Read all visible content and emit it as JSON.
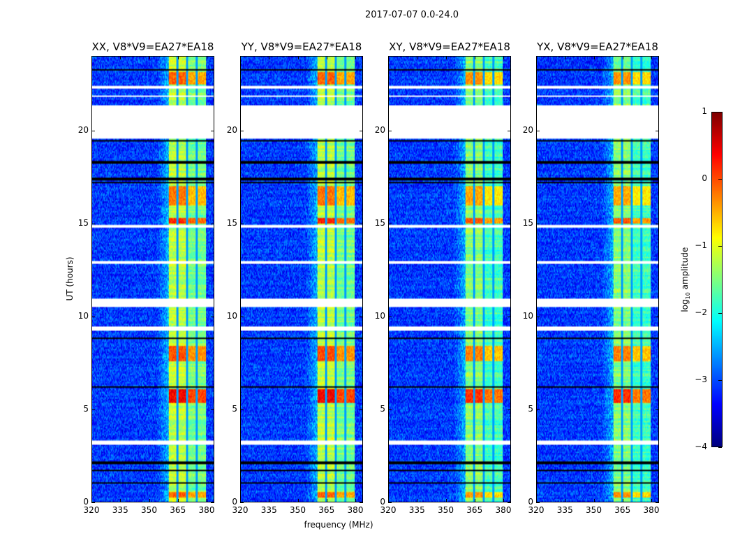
{
  "suptitle": "2017-07-07 0.0-24.0",
  "chart_data": {
    "type": "heatmap",
    "panels": [
      {
        "title": "XX, V8*V9=EA27*EA18",
        "pol": "XX"
      },
      {
        "title": "YY, V8*V9=EA27*EA18",
        "pol": "YY"
      },
      {
        "title": "XY, V8*V9=EA27*EA18",
        "pol": "XY"
      },
      {
        "title": "YX, V8*V9=EA27*EA18",
        "pol": "YX"
      }
    ],
    "xlabel": "frequency (MHz)",
    "ylabel": "UT (hours)",
    "xlim": [
      320,
      384
    ],
    "ylim": [
      0,
      24
    ],
    "xticks": [
      "320",
      "335",
      "350",
      "365",
      "380"
    ],
    "xtick_values": [
      320,
      335,
      350,
      365,
      380
    ],
    "yticks": [
      "0",
      "5",
      "10",
      "15",
      "20"
    ],
    "ytick_values": [
      0,
      5,
      10,
      15,
      20
    ],
    "colorbar": {
      "label": "log10 amplitude",
      "label_main": "log",
      "label_sub": "10",
      "label_rest": " amplitude",
      "range": [
        -4,
        1
      ],
      "ticks": [
        "1",
        "0",
        "−1",
        "−2",
        "−3",
        "−4"
      ],
      "tick_values": [
        1,
        0,
        -1,
        -2,
        -3,
        -4
      ],
      "colormap": "jet"
    },
    "background_level": -3.1,
    "bright_band_mhz": [
      360.4,
      380
    ],
    "band_channel_gaps_mhz": [
      365,
      370,
      375
    ],
    "flagged_hours": [
      [
        19.55,
        21.35
      ],
      [
        10.5,
        10.95
      ],
      [
        14.75,
        14.9
      ],
      [
        3.05,
        3.3
      ],
      [
        9.2,
        9.45
      ],
      [
        12.85,
        12.95
      ],
      [
        22.3,
        22.4
      ],
      [
        21.8,
        21.9
      ]
    ],
    "black_line_hours": [
      23.3,
      19.45,
      18.3,
      17.4,
      17.2,
      2.1,
      1.7,
      1.0,
      8.8,
      6.2
    ],
    "bright_segments_hours": [
      [
        5.3,
        6.1,
        0.4
      ],
      [
        7.6,
        8.4,
        0.0
      ],
      [
        15.0,
        15.3,
        0.2
      ],
      [
        16.0,
        17.0,
        -0.2
      ],
      [
        22.5,
        23.2,
        -0.1
      ],
      [
        0.2,
        0.5,
        -0.1
      ]
    ]
  }
}
